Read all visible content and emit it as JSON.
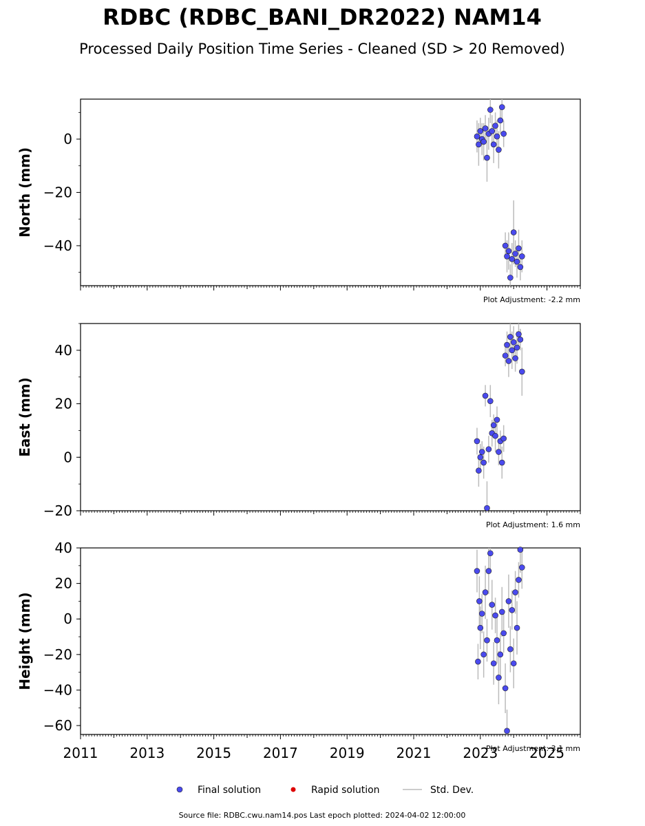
{
  "title": "RDBC (RDBC_BANI_DR2022) NAM14",
  "subtitle": "Processed Daily Position Time Series - Cleaned (SD > 20 Removed)",
  "footer": "Source file: RDBC.cwu.nam14.pos  Last epoch plotted: 2024-04-02 12:00:00",
  "legend": {
    "final": "Final solution",
    "rapid": "Rapid solution",
    "std": "Std. Dev."
  },
  "colors": {
    "final": "#4a4aee",
    "rapid": "#dd0000",
    "std": "#bbbbbb",
    "marker_edge": "#222222"
  },
  "chart_data": [
    {
      "type": "scatter",
      "ylabel": "North (mm)",
      "adjustment": "Plot Adjustment: -2.2 mm",
      "xlim": [
        2011,
        2026
      ],
      "ylim": [
        -55,
        15
      ],
      "yticks": [
        0,
        -20,
        -40
      ],
      "ytick_labels": [
        "0",
        "−20",
        "−40"
      ],
      "series": [
        {
          "name": "Final solution",
          "x": [
            2022.9,
            2022.95,
            2023.0,
            2023.05,
            2023.1,
            2023.15,
            2023.2,
            2023.25,
            2023.3,
            2023.35,
            2023.4,
            2023.45,
            2023.5,
            2023.55,
            2023.6,
            2023.65,
            2023.7,
            2023.75,
            2023.8,
            2023.85,
            2023.9,
            2023.95,
            2024.0,
            2024.05,
            2024.1,
            2024.15,
            2024.2,
            2024.25
          ],
          "y": [
            1,
            -2,
            3,
            0,
            -1,
            4,
            -7,
            2,
            11,
            3,
            -2,
            5,
            1,
            -4,
            7,
            12,
            2,
            -40,
            -44,
            -42,
            -52,
            -45,
            -35,
            -43,
            -46,
            -41,
            -48,
            -44
          ],
          "err": [
            6,
            8,
            5,
            6,
            7,
            5,
            9,
            6,
            5,
            6,
            7,
            5,
            6,
            7,
            5,
            4,
            5,
            5,
            6,
            7,
            5,
            6,
            12,
            5,
            6,
            7,
            5,
            6
          ]
        }
      ]
    },
    {
      "type": "scatter",
      "ylabel": "East (mm)",
      "adjustment": "Plot Adjustment: 1.6 mm",
      "xlim": [
        2011,
        2026
      ],
      "ylim": [
        -20,
        50
      ],
      "yticks": [
        40,
        20,
        0,
        -20
      ],
      "ytick_labels": [
        "40",
        "20",
        "0",
        "−20"
      ],
      "series": [
        {
          "name": "Final solution",
          "x": [
            2022.9,
            2022.95,
            2023.0,
            2023.05,
            2023.1,
            2023.15,
            2023.2,
            2023.25,
            2023.3,
            2023.35,
            2023.4,
            2023.45,
            2023.5,
            2023.55,
            2023.6,
            2023.65,
            2023.7,
            2023.75,
            2023.8,
            2023.85,
            2023.9,
            2023.95,
            2024.0,
            2024.05,
            2024.1,
            2024.15,
            2024.2,
            2024.25
          ],
          "y": [
            6,
            -5,
            0,
            2,
            -2,
            23,
            -19,
            3,
            21,
            9,
            12,
            8,
            14,
            2,
            6,
            -2,
            7,
            38,
            42,
            36,
            45,
            40,
            43,
            37,
            41,
            46,
            44,
            32
          ],
          "err": [
            5,
            6,
            5,
            4,
            6,
            4,
            10,
            5,
            6,
            5,
            4,
            6,
            5,
            5,
            4,
            6,
            5,
            4,
            5,
            6,
            5,
            7,
            6,
            5,
            6,
            5,
            4,
            9
          ]
        }
      ]
    },
    {
      "type": "scatter",
      "ylabel": "Height (mm)",
      "adjustment": "Plot Adjustment: 3.1 mm",
      "xlim": [
        2011,
        2026
      ],
      "ylim": [
        -65,
        40
      ],
      "yticks": [
        40,
        20,
        0,
        -20,
        -40,
        -60
      ],
      "ytick_labels": [
        "40",
        "20",
        "0",
        "−20",
        "−40",
        "−60"
      ],
      "xticks": [
        2011,
        2013,
        2015,
        2017,
        2019,
        2021,
        2023,
        2025
      ],
      "xtick_labels": [
        "2011",
        "2013",
        "2015",
        "2017",
        "2019",
        "2021",
        "2023",
        "2025"
      ],
      "series": [
        {
          "name": "Final solution",
          "x": [
            2022.9,
            2022.93,
            2022.97,
            2023.0,
            2023.05,
            2023.1,
            2023.15,
            2023.2,
            2023.25,
            2023.3,
            2023.35,
            2023.4,
            2023.45,
            2023.5,
            2023.55,
            2023.6,
            2023.65,
            2023.7,
            2023.75,
            2023.8,
            2023.85,
            2023.9,
            2023.95,
            2024.0,
            2024.05,
            2024.1,
            2024.15,
            2024.2,
            2024.25
          ],
          "y": [
            27,
            -24,
            10,
            -5,
            3,
            -20,
            15,
            -12,
            27,
            37,
            8,
            -25,
            2,
            -12,
            -33,
            -20,
            4,
            -8,
            -39,
            -63,
            10,
            -17,
            5,
            -25,
            15,
            -5,
            22,
            39,
            29
          ],
          "err": [
            12,
            10,
            14,
            12,
            11,
            13,
            15,
            12,
            13,
            11,
            14,
            12,
            10,
            13,
            15,
            12,
            14,
            11,
            14,
            12,
            15,
            13,
            11,
            14,
            12,
            15,
            10,
            13,
            12
          ]
        }
      ]
    }
  ]
}
